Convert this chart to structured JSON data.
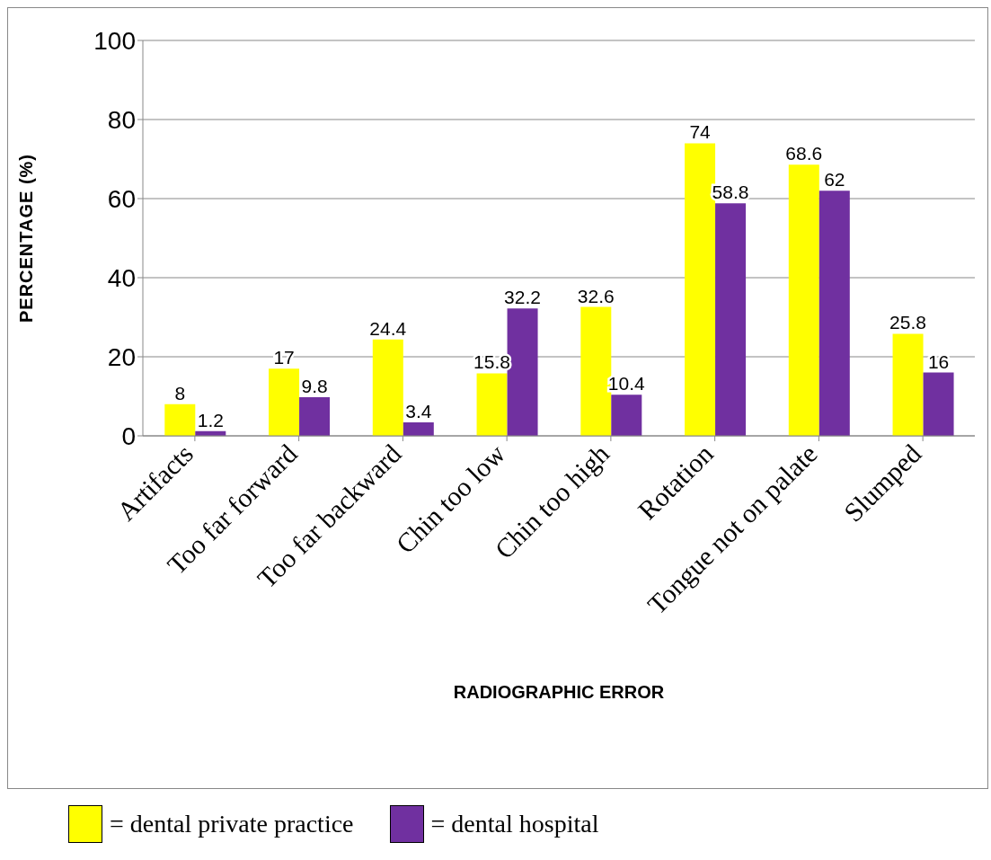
{
  "chart_data": {
    "type": "bar",
    "xlabel": "RADIOGRAPHIC ERROR",
    "ylabel": "PERCENTAGE (%)",
    "categories": [
      "Artifacts",
      "Too far forward",
      "Too far backward",
      "Chin too low",
      "Chin too high",
      "Rotation",
      "Tongue not on palate",
      "Slumped"
    ],
    "series": [
      {
        "name": "= dental private practice",
        "color": "#ffff00",
        "values": [
          8,
          17,
          24.4,
          15.8,
          32.6,
          74,
          68.6,
          25.8
        ]
      },
      {
        "name": "= dental hospital",
        "color": "#7030a0",
        "values": [
          1.2,
          9.8,
          3.4,
          32.2,
          10.4,
          58.8,
          62,
          16
        ]
      }
    ],
    "ylim": [
      0,
      100
    ],
    "yticks": [
      0,
      20,
      40,
      60,
      80,
      100
    ],
    "grid": "y",
    "data_labels": true,
    "legend": "bottom"
  }
}
